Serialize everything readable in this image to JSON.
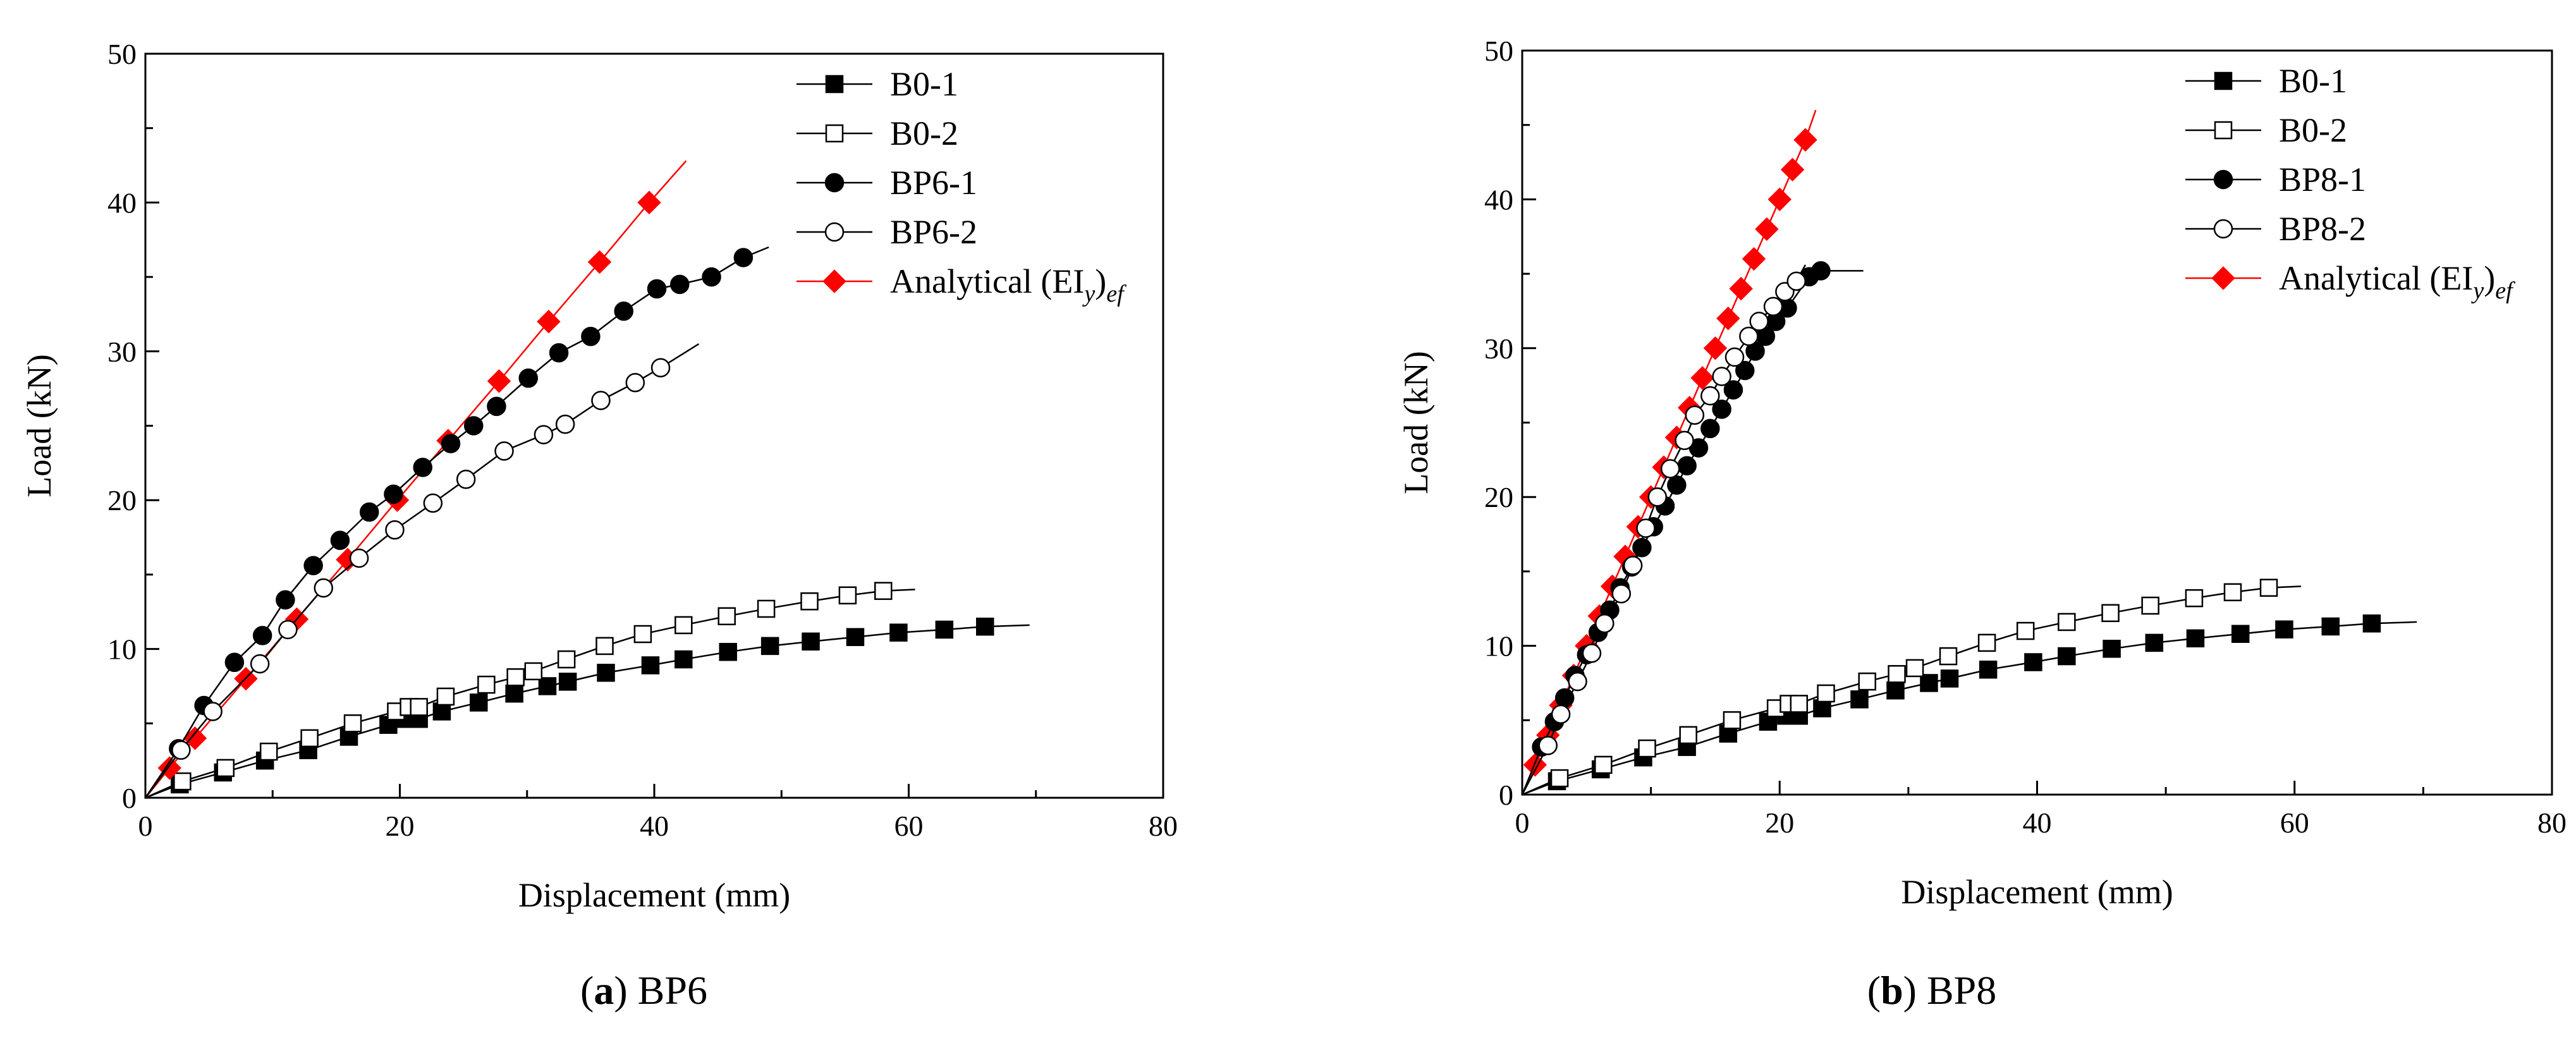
{
  "chart_data": [
    {
      "type": "line",
      "caption_letter": "a",
      "caption_text": " BP6",
      "xlabel": "Displacement (mm)",
      "ylabel": "Load (kN)",
      "xlim": [
        0,
        80
      ],
      "ylim": [
        0,
        50
      ],
      "xticks": [
        0,
        20,
        40,
        60,
        80
      ],
      "yticks": [
        0,
        10,
        20,
        30,
        40,
        50
      ],
      "grid": false,
      "legend_position": "top-right",
      "series": [
        {
          "name": "B0-1",
          "marker": "filled-square",
          "color": "#000000",
          "x": [
            0,
            2.7,
            6.1,
            9.4,
            12.8,
            16.0,
            19.1,
            20.5,
            21.5,
            23.3,
            26.2,
            29.0,
            31.6,
            33.2,
            36.2,
            39.7,
            42.3,
            45.8,
            49.1,
            52.3,
            55.8,
            59.2,
            62.8,
            66.0,
            69.5
          ],
          "y": [
            0,
            0.9,
            1.7,
            2.5,
            3.2,
            4.1,
            4.9,
            5.3,
            5.3,
            5.8,
            6.4,
            7.0,
            7.5,
            7.8,
            8.4,
            8.9,
            9.3,
            9.8,
            10.2,
            10.5,
            10.8,
            11.1,
            11.3,
            11.5,
            11.6
          ]
        },
        {
          "name": "B0-2",
          "marker": "open-square",
          "color": "#000000",
          "x": [
            0,
            2.9,
            6.3,
            9.7,
            12.9,
            16.3,
            19.7,
            20.7,
            21.5,
            23.6,
            26.8,
            29.1,
            30.5,
            33.1,
            36.1,
            39.1,
            42.3,
            45.7,
            48.8,
            52.2,
            55.2,
            58.0,
            60.5
          ],
          "y": [
            0,
            1.1,
            2.0,
            3.1,
            4.0,
            5.0,
            5.8,
            6.1,
            6.1,
            6.8,
            7.6,
            8.1,
            8.5,
            9.3,
            10.2,
            11.0,
            11.6,
            12.2,
            12.7,
            13.2,
            13.6,
            13.9,
            14.0
          ]
        },
        {
          "name": "BP6-1",
          "marker": "filled-circle",
          "color": "#000000",
          "x": [
            0,
            2.6,
            4.6,
            7.0,
            9.2,
            11.0,
            13.2,
            15.3,
            17.6,
            19.5,
            21.8,
            24.0,
            25.8,
            27.6,
            30.1,
            32.5,
            35.0,
            37.6,
            40.2,
            42.0,
            44.5,
            47.0,
            49.0
          ],
          "y": [
            0,
            3.3,
            6.2,
            9.1,
            10.9,
            13.3,
            15.6,
            17.3,
            19.2,
            20.4,
            22.2,
            23.8,
            25.0,
            26.3,
            28.2,
            29.9,
            31.0,
            32.7,
            34.2,
            34.5,
            35.0,
            36.3,
            37.0
          ]
        },
        {
          "name": "BP6-2",
          "marker": "open-circle",
          "color": "#000000",
          "x": [
            0,
            2.8,
            5.3,
            9.0,
            11.2,
            14.0,
            16.8,
            19.6,
            22.6,
            25.2,
            28.2,
            31.3,
            33.0,
            35.8,
            38.5,
            40.5,
            43.5
          ],
          "y": [
            0,
            3.2,
            5.8,
            9.0,
            11.3,
            14.1,
            16.1,
            18.0,
            19.8,
            21.4,
            23.3,
            24.4,
            25.1,
            26.7,
            27.9,
            28.9,
            30.5
          ]
        },
        {
          "name": "Analytical (EI",
          "name_sub": "y",
          "name_close": ")",
          "name_sub2": "ef",
          "marker": "filled-diamond",
          "color": "#ff0000",
          "x": [
            0,
            1.9,
            3.9,
            7.9,
            11.9,
            15.9,
            19.8,
            23.8,
            27.8,
            31.7,
            35.7,
            39.6,
            42.5
          ],
          "y": [
            0,
            2,
            4,
            8,
            12,
            16,
            20,
            24,
            28,
            32,
            36,
            40,
            42.8
          ]
        }
      ]
    },
    {
      "type": "line",
      "caption_letter": "b",
      "caption_text": " BP8",
      "xlabel": "Displacement (mm)",
      "ylabel": "Load (kN)",
      "xlim": [
        0,
        80
      ],
      "ylim": [
        0,
        50
      ],
      "xticks": [
        0,
        20,
        40,
        60,
        80
      ],
      "yticks": [
        0,
        10,
        20,
        30,
        40,
        50
      ],
      "grid": false,
      "legend_position": "top-right",
      "series": [
        {
          "name": "B0-1",
          "marker": "filled-square",
          "color": "#000000",
          "x": [
            0,
            2.7,
            6.1,
            9.4,
            12.8,
            16.0,
            19.1,
            20.5,
            21.5,
            23.3,
            26.2,
            29.0,
            31.6,
            33.2,
            36.2,
            39.7,
            42.3,
            45.8,
            49.1,
            52.3,
            55.8,
            59.2,
            62.8,
            66.0,
            69.5
          ],
          "y": [
            0,
            0.9,
            1.7,
            2.5,
            3.2,
            4.1,
            4.9,
            5.3,
            5.3,
            5.8,
            6.4,
            7.0,
            7.5,
            7.8,
            8.4,
            8.9,
            9.3,
            9.8,
            10.2,
            10.5,
            10.8,
            11.1,
            11.3,
            11.5,
            11.6
          ]
        },
        {
          "name": "B0-2",
          "marker": "open-square",
          "color": "#000000",
          "x": [
            0,
            2.9,
            6.3,
            9.7,
            12.9,
            16.3,
            19.7,
            20.7,
            21.5,
            23.6,
            26.8,
            29.1,
            30.5,
            33.1,
            36.1,
            39.1,
            42.3,
            45.7,
            48.8,
            52.2,
            55.2,
            58.0,
            60.5
          ],
          "y": [
            0,
            1.1,
            2.0,
            3.1,
            4.0,
            5.0,
            5.8,
            6.1,
            6.1,
            6.8,
            7.6,
            8.1,
            8.5,
            9.3,
            10.2,
            11.0,
            11.6,
            12.2,
            12.7,
            13.2,
            13.6,
            13.9,
            14.0
          ]
        },
        {
          "name": "BP8-1",
          "marker": "filled-circle",
          "color": "#000000",
          "x": [
            0,
            1.5,
            2.5,
            3.3,
            4.1,
            5.0,
            5.9,
            6.8,
            7.6,
            8.5,
            9.3,
            10.2,
            11.1,
            12.0,
            12.8,
            13.7,
            14.6,
            15.5,
            16.4,
            17.3,
            18.1,
            18.9,
            19.7,
            20.6,
            22.3,
            23.2,
            26.5
          ],
          "y": [
            0,
            3.2,
            4.9,
            6.5,
            8.0,
            9.4,
            10.9,
            12.4,
            13.9,
            15.3,
            16.6,
            18.0,
            19.4,
            20.8,
            22.1,
            23.3,
            24.6,
            25.9,
            27.2,
            28.5,
            29.8,
            30.8,
            31.8,
            32.7,
            34.8,
            35.2,
            35.2
          ]
        },
        {
          "name": "BP8-2",
          "marker": "open-circle",
          "color": "#000000",
          "x": [
            0,
            2.0,
            3.0,
            4.3,
            5.4,
            6.4,
            7.7,
            8.6,
            9.6,
            10.5,
            11.5,
            12.6,
            13.4,
            14.6,
            15.5,
            16.5,
            17.6,
            18.4,
            19.5,
            20.4,
            21.3,
            22.0
          ],
          "y": [
            0,
            3.3,
            5.4,
            7.6,
            9.5,
            11.5,
            13.5,
            15.4,
            17.9,
            20.0,
            21.9,
            23.8,
            25.5,
            26.8,
            28.1,
            29.4,
            30.8,
            31.8,
            32.8,
            33.8,
            34.5,
            35.6
          ]
        },
        {
          "name": "Analytical (EI",
          "name_sub": "y",
          "name_close": ")",
          "name_sub2": "ef",
          "marker": "filled-diamond",
          "color": "#ff0000",
          "x": [
            0,
            1.0,
            2.0,
            3.0,
            4.0,
            5.0,
            6.0,
            7.0,
            8.0,
            9.0,
            10.0,
            11.0,
            12.0,
            13.0,
            14.0,
            15.0,
            16.0,
            17.0,
            18.0,
            19.0,
            20.0,
            21.0,
            22.0,
            22.8
          ],
          "y": [
            0,
            2,
            4,
            6,
            8,
            10,
            12,
            14,
            16,
            18,
            20,
            22,
            24,
            26,
            28,
            30,
            32,
            34,
            36,
            38,
            40,
            42,
            44,
            46
          ]
        }
      ]
    }
  ]
}
